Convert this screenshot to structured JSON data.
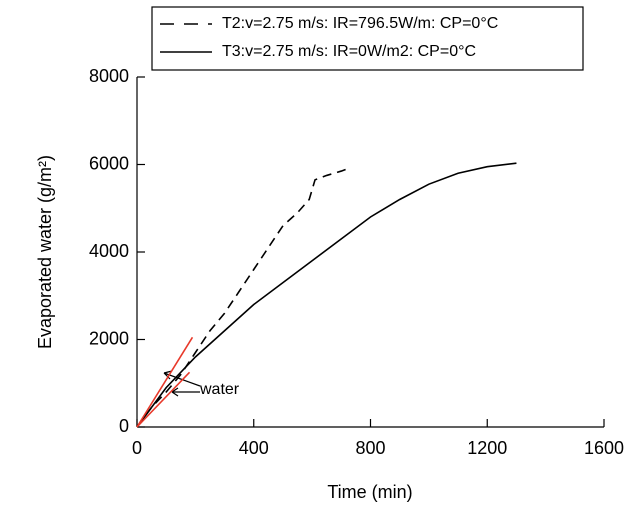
{
  "chart_data": {
    "type": "line",
    "x_label": "Time (min)",
    "y_label": "Evaporated water (g/m²)",
    "annotation": "water",
    "xlim": [
      0,
      1600
    ],
    "xticks": [
      0,
      400,
      800,
      1200,
      1600
    ],
    "ylim": [
      0,
      8000
    ],
    "yticks": [
      0,
      2000,
      4000,
      6000,
      8000
    ],
    "series": [
      {
        "name": "T2:v=2.75 m/s: IR=796.5W/m: CP=0°C",
        "color": "#000000",
        "dash": true,
        "x": [
          0,
          50,
          100,
          150,
          200,
          250,
          300,
          350,
          400,
          450,
          500,
          550,
          590,
          610,
          650,
          700,
          720,
          730
        ],
        "values": [
          0,
          450,
          800,
          1200,
          1700,
          2200,
          2600,
          3100,
          3600,
          4100,
          4600,
          4900,
          5200,
          5650,
          5750,
          5850,
          5900,
          5850
        ]
      },
      {
        "name": "T3:v=2.75 m/s: IR=0W/m2: CP=0°C",
        "color": "#000000",
        "dash": false,
        "x": [
          0,
          100,
          200,
          300,
          400,
          500,
          600,
          700,
          800,
          900,
          1000,
          1100,
          1200,
          1300
        ],
        "values": [
          0,
          900,
          1600,
          2200,
          2800,
          3300,
          3800,
          4300,
          4800,
          5200,
          5550,
          5800,
          5950,
          6030
        ]
      },
      {
        "color": "#e8392a",
        "dash": false,
        "x": [
          0,
          190
        ],
        "values": [
          0,
          2050
        ]
      },
      {
        "color": "#e8392a",
        "dash": false,
        "x": [
          0,
          180
        ],
        "values": [
          0,
          1250
        ]
      }
    ]
  }
}
